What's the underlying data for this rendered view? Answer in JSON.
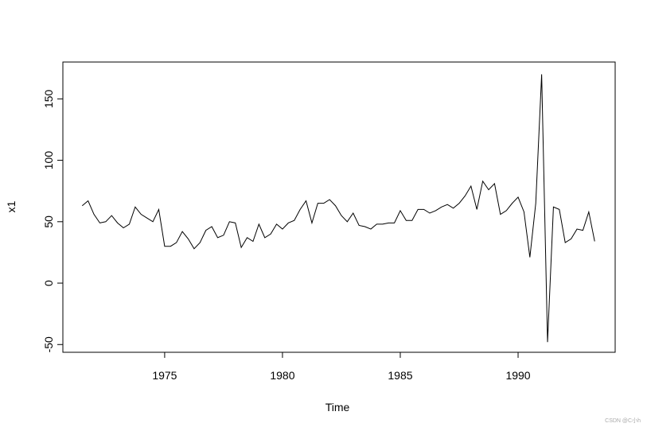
{
  "chart_data": {
    "type": "line",
    "xlabel": "Time",
    "ylabel": "x1",
    "x": [
      1971.5,
      1971.75,
      1972,
      1972.25,
      1972.5,
      1972.75,
      1973,
      1973.25,
      1973.5,
      1973.75,
      1974,
      1974.25,
      1974.5,
      1974.75,
      1975,
      1975.25,
      1975.5,
      1975.75,
      1976,
      1976.25,
      1976.5,
      1976.75,
      1977,
      1977.25,
      1977.5,
      1977.75,
      1978,
      1978.25,
      1978.5,
      1978.75,
      1979,
      1979.25,
      1979.5,
      1979.75,
      1980,
      1980.25,
      1980.5,
      1980.75,
      1981,
      1981.25,
      1981.5,
      1981.75,
      1982,
      1982.25,
      1982.5,
      1982.75,
      1983,
      1983.25,
      1983.5,
      1983.75,
      1984,
      1984.25,
      1984.5,
      1984.75,
      1985,
      1985.25,
      1985.5,
      1985.75,
      1986,
      1986.25,
      1986.5,
      1986.75,
      1987,
      1987.25,
      1987.5,
      1987.75,
      1988,
      1988.25,
      1988.5,
      1988.75,
      1989,
      1989.25,
      1989.5,
      1989.75,
      1990,
      1990.25,
      1990.5,
      1990.75,
      1991,
      1991.25,
      1991.5,
      1991.75,
      1992,
      1992.25,
      1992.5,
      1992.75,
      1993,
      1993.25
    ],
    "values": [
      63,
      67,
      56,
      49,
      50,
      55,
      49,
      45,
      48,
      62,
      56,
      53,
      50,
      60,
      30,
      30,
      33,
      42,
      36,
      28,
      33,
      43,
      46,
      37,
      39,
      50,
      49,
      29,
      37,
      34,
      48,
      37,
      40,
      48,
      44,
      49,
      51,
      60,
      67,
      49,
      65,
      65,
      68,
      63,
      55,
      50,
      57,
      47,
      46,
      44,
      48,
      48,
      49,
      49,
      59,
      51,
      51,
      60,
      60,
      57,
      59,
      62,
      64,
      61,
      65,
      71,
      79,
      60,
      83,
      76,
      81,
      56,
      59,
      65,
      70,
      58,
      21,
      65,
      170,
      -48,
      62,
      60,
      33,
      36,
      44,
      43,
      58,
      34
    ],
    "color": "#000000",
    "xlim": [
      1970.68,
      1994.12
    ],
    "xticks": [
      1975,
      1980,
      1985,
      1990
    ],
    "ylim": [
      -56.3,
      180
    ],
    "yticks": [
      -50,
      0,
      50,
      100,
      150
    ],
    "watermark": "CSDN @C小h"
  }
}
